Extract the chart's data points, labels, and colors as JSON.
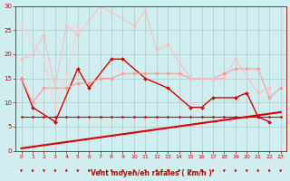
{
  "xlabel": "Vent moyen/en rafales ( km/h )",
  "bg_color": "#d0eef0",
  "grid_color": "#b0c8ca",
  "xlim": [
    -0.5,
    23.5
  ],
  "ylim": [
    0,
    30
  ],
  "yticks": [
    0,
    5,
    10,
    15,
    20,
    25,
    30
  ],
  "xticks": [
    0,
    1,
    2,
    3,
    4,
    5,
    6,
    7,
    8,
    9,
    10,
    11,
    12,
    13,
    14,
    15,
    16,
    17,
    18,
    19,
    20,
    21,
    22,
    23
  ],
  "lines": [
    {
      "x": [
        0,
        1,
        3,
        5,
        6,
        8,
        9,
        11,
        13,
        15,
        16,
        17,
        19,
        20,
        21,
        22
      ],
      "y": [
        15,
        9,
        6,
        17,
        13,
        19,
        19,
        15,
        13,
        9,
        9,
        11,
        11,
        12,
        7,
        6
      ],
      "color": "#dd0000",
      "marker": "D",
      "markersize": 2.0,
      "linewidth": 1.0,
      "alpha": 1.0
    },
    {
      "x": [
        0,
        23
      ],
      "y": [
        0.5,
        8.0
      ],
      "color": "#dd0000",
      "marker": null,
      "markersize": 0,
      "linewidth": 1.5,
      "alpha": 1.0
    },
    {
      "x": [
        0,
        1,
        2,
        3,
        4,
        5,
        6,
        7,
        8,
        9,
        10,
        11,
        12,
        13,
        14,
        15,
        16,
        17,
        18,
        19,
        20,
        21,
        22,
        23
      ],
      "y": [
        7,
        7,
        7,
        7,
        7,
        7,
        7,
        7,
        7,
        7,
        7,
        7,
        7,
        7,
        7,
        7,
        7,
        7,
        7,
        7,
        7,
        7,
        7,
        7
      ],
      "color": "#dd0000",
      "marker": "D",
      "markersize": 1.5,
      "linewidth": 0.8,
      "alpha": 1.0
    },
    {
      "x": [
        0,
        1,
        2,
        3,
        4,
        5,
        6,
        7,
        8,
        9,
        10,
        11,
        12,
        13,
        14,
        15,
        16,
        17,
        18,
        19,
        20,
        21,
        22,
        23
      ],
      "y": [
        15,
        10,
        13,
        13,
        13,
        14,
        14,
        15,
        15,
        16,
        16,
        16,
        16,
        16,
        16,
        15,
        15,
        15,
        16,
        17,
        17,
        17,
        11,
        13
      ],
      "color": "#ff9999",
      "marker": "D",
      "markersize": 2.0,
      "linewidth": 0.8,
      "alpha": 1.0
    },
    {
      "x": [
        0,
        1,
        2,
        3,
        4,
        5,
        7,
        10,
        11,
        12,
        13,
        15,
        16,
        17,
        18,
        19,
        21,
        22
      ],
      "y": [
        19,
        20,
        24,
        13,
        26,
        24,
        30,
        26,
        29,
        21,
        22,
        15,
        15,
        15,
        15,
        19,
        12,
        13
      ],
      "color": "#ffbbbb",
      "marker": "D",
      "markersize": 2.0,
      "linewidth": 0.8,
      "alpha": 1.0
    },
    {
      "x": [
        0,
        2,
        3,
        4,
        5
      ],
      "y": [
        26,
        19,
        9,
        15,
        26
      ],
      "color": "#ffcccc",
      "marker": "D",
      "markersize": 2.0,
      "linewidth": 0.8,
      "alpha": 0.9
    }
  ]
}
